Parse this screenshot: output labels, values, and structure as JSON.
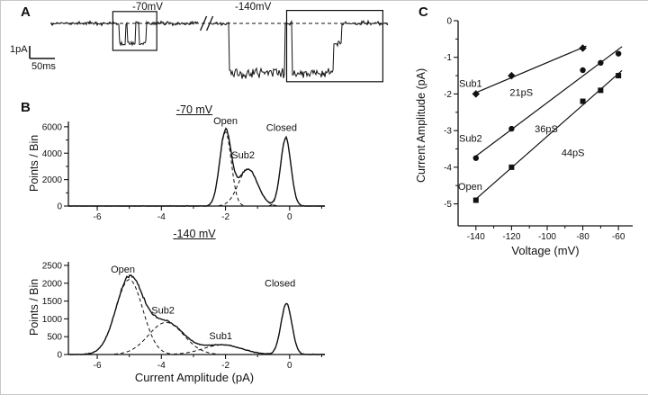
{
  "panels": {
    "a_label": "A",
    "b_label": "B",
    "c_label": "C"
  },
  "chart_data": [
    {
      "id": "trace",
      "type": "line",
      "title": "Single-channel current trace",
      "voltage_annotations": [
        {
          "text": "-70mV",
          "f": 0.26
        },
        {
          "text": "-140mV",
          "f": 0.58
        }
      ],
      "scale_bar": {
        "vertical_label": "1pA",
        "vertical_pA": 1,
        "horizontal_label": "50ms",
        "horizontal_ms": 50
      },
      "baseline_pA": 0,
      "segments": [
        {
          "f0": 0.0,
          "f1": 0.205,
          "pA": 0
        },
        {
          "f0": 0.205,
          "f1": 0.222,
          "pA": -1.85
        },
        {
          "f0": 0.222,
          "f1": 0.228,
          "pA": 0
        },
        {
          "f0": 0.228,
          "f1": 0.252,
          "pA": -1.85
        },
        {
          "f0": 0.252,
          "f1": 0.262,
          "pA": 0
        },
        {
          "f0": 0.262,
          "f1": 0.285,
          "pA": -1.85
        },
        {
          "f0": 0.285,
          "f1": 0.44,
          "pA": 0
        },
        {
          "f0": 0.475,
          "f1": 0.53,
          "pA": 0
        },
        {
          "f0": 0.53,
          "f1": 0.695,
          "pA": -4.6
        },
        {
          "f0": 0.695,
          "f1": 0.715,
          "pA": 0
        },
        {
          "f0": 0.715,
          "f1": 0.84,
          "pA": -4.6
        },
        {
          "f0": 0.84,
          "f1": 0.862,
          "pA": -1.9
        },
        {
          "f0": 0.862,
          "f1": 1.01,
          "pA": 0
        }
      ],
      "break_f": 0.4575,
      "boxes": [
        {
          "f0": 0.185,
          "f1": 0.315,
          "pA_top": 1.1,
          "pA_bottom": -2.5
        },
        {
          "f0": 0.7,
          "f1": 0.985,
          "pA_top": 1.2,
          "pA_bottom": -5.4
        }
      ],
      "noise": {
        "open": 0.22,
        "mid": 0.13,
        "closed": 0.09
      }
    },
    {
      "id": "hist70",
      "type": "area",
      "title": "-70 mV",
      "ylabel": "Points / Bin",
      "xlim": [
        -6.9,
        1.1
      ],
      "ylim": [
        0,
        6400
      ],
      "xticks": [
        -6,
        -4,
        -2,
        0
      ],
      "xminor": [
        -5,
        -3,
        -1,
        1
      ],
      "yticks": [
        0,
        2000,
        4000,
        6000
      ],
      "yminor": [
        1000,
        3000,
        5000
      ],
      "components": [
        {
          "label": "Open",
          "mean": -2.0,
          "sd": 0.18,
          "amp": 5600,
          "label_x": -2.0,
          "label_y": 6200
        },
        {
          "label": "Sub2",
          "mean": -1.3,
          "sd": 0.3,
          "amp": 2800,
          "label_x": -1.45,
          "label_y": 3600
        },
        {
          "label": "Closed",
          "mean": -0.12,
          "sd": 0.16,
          "amp": 5150,
          "label_x": -0.25,
          "label_y": 5700
        }
      ]
    },
    {
      "id": "hist140",
      "type": "area",
      "title": "-140 mV",
      "ylabel": "Points / Bin",
      "xlabel": "Current Amplitude (pA)",
      "xlim": [
        -6.9,
        1.1
      ],
      "ylim": [
        0,
        2600
      ],
      "xticks": [
        -6,
        -4,
        -2,
        0
      ],
      "xminor": [
        -5,
        -3,
        -1,
        1
      ],
      "yticks": [
        0,
        500,
        1000,
        1500,
        2000,
        2500
      ],
      "yminor": [],
      "components": [
        {
          "label": "Open",
          "mean": -5.0,
          "sd": 0.42,
          "amp": 2100,
          "label_x": -5.2,
          "label_y": 2300
        },
        {
          "label": "Sub2",
          "mean": -3.85,
          "sd": 0.55,
          "amp": 900,
          "label_x": -3.95,
          "label_y": 1150
        },
        {
          "label": "Sub1",
          "mean": -2.1,
          "sd": 0.6,
          "amp": 270,
          "label_x": -2.15,
          "label_y": 430
        },
        {
          "label": "Closed",
          "mean": -0.1,
          "sd": 0.17,
          "amp": 1430,
          "label_x": -0.3,
          "label_y": 1900
        }
      ]
    },
    {
      "id": "iv",
      "type": "scatter",
      "xlabel": "Voltage (mV)",
      "ylabel": "Current Amplitude (pA)",
      "xlim": [
        -150,
        -52
      ],
      "ylim": [
        -5.6,
        0
      ],
      "xticks": [
        -140,
        -120,
        -100,
        -80,
        -60
      ],
      "xminor": [
        -130,
        -110,
        -90,
        -70
      ],
      "yticks": [
        0,
        -1,
        -2,
        -3,
        -4,
        -5
      ],
      "yminor": [
        -0.5,
        -1.5,
        -2.5,
        -3.5,
        -4.5
      ],
      "series": [
        {
          "name": "Sub1",
          "marker": "diamond",
          "conductance": "21pS",
          "points": [
            [
              -140,
              -2.0
            ],
            [
              -120,
              -1.5
            ],
            [
              -80,
              -0.75
            ]
          ],
          "name_pos": [
            -149.5,
            -1.8
          ],
          "cond_pos": [
            -121,
            -2.05
          ]
        },
        {
          "name": "Sub2",
          "marker": "circle",
          "conductance": "36pS",
          "points": [
            [
              -140,
              -3.75
            ],
            [
              -120,
              -2.95
            ],
            [
              -80,
              -1.35
            ],
            [
              -70,
              -1.15
            ],
            [
              -60,
              -0.9
            ]
          ],
          "name_pos": [
            -149.5,
            -3.3
          ],
          "cond_pos": [
            -107,
            -3.05
          ]
        },
        {
          "name": "Open",
          "marker": "square",
          "conductance": "44pS",
          "points": [
            [
              -140,
              -4.9
            ],
            [
              -120,
              -4.0
            ],
            [
              -80,
              -2.2
            ],
            [
              -70,
              -1.9
            ],
            [
              -60,
              -1.5
            ]
          ],
          "name_pos": [
            -150,
            -4.62
          ],
          "cond_pos": [
            -92,
            -3.7
          ]
        }
      ]
    }
  ]
}
